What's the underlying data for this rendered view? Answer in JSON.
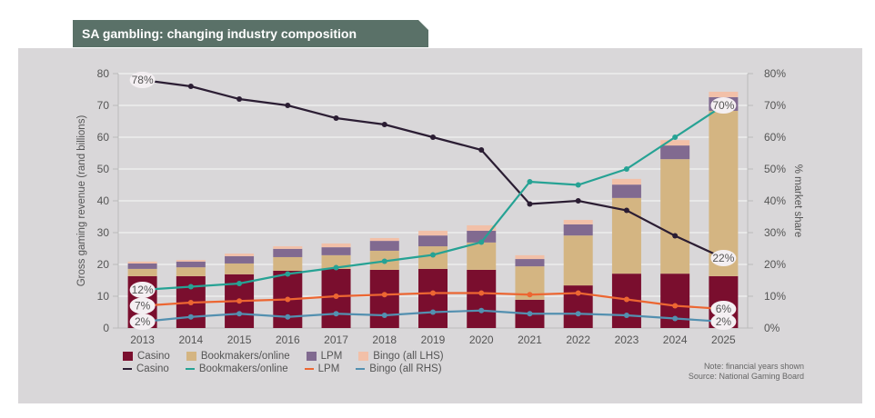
{
  "header": {
    "title": "SA gambling: changing industry composition"
  },
  "chart_data": {
    "type": "bar",
    "subtype": "stacked-bar-with-lines",
    "title": "SA gambling: changing industry composition",
    "xlabel": "",
    "ylabel": "Gross gaming revenue (rand billions)",
    "y2label": "% market share",
    "ylim": [
      0,
      80
    ],
    "y2lim": [
      0,
      80
    ],
    "yticks": [
      "0",
      "10",
      "20",
      "30",
      "40",
      "50",
      "60",
      "70",
      "80"
    ],
    "y2ticks": [
      "0%",
      "10%",
      "20%",
      "30%",
      "40%",
      "50%",
      "60%",
      "70%",
      "80%"
    ],
    "grid": true,
    "categories": [
      "2013",
      "2014",
      "2015",
      "2016",
      "2017",
      "2018",
      "2019",
      "2020",
      "2021",
      "2022",
      "2023",
      "2024",
      "2025"
    ],
    "bar_series": [
      {
        "name": "Casino",
        "color": "#7a0e2e",
        "values": [
          16.3,
          16.3,
          16.9,
          18.0,
          18.6,
          18.3,
          18.6,
          18.3,
          8.9,
          13.4,
          17.1,
          17.1,
          16.3
        ]
      },
      {
        "name": "Bookmakers/online",
        "color": "#d4b582",
        "values": [
          2.3,
          2.8,
          3.4,
          4.3,
          4.3,
          6.0,
          7.1,
          8.6,
          10.5,
          15.7,
          23.8,
          36.0,
          52.0
        ]
      },
      {
        "name": "LPM",
        "color": "#816a90",
        "values": [
          1.7,
          1.8,
          2.3,
          2.6,
          2.5,
          3.1,
          3.4,
          3.7,
          2.3,
          3.5,
          4.2,
          4.3,
          4.3
        ]
      },
      {
        "name": "Bingo (all LHS)",
        "color": "#f2c0a8",
        "values": [
          0.6,
          0.5,
          0.8,
          0.8,
          1.2,
          0.9,
          1.5,
          1.7,
          1.2,
          1.4,
          1.8,
          1.7,
          1.7
        ]
      }
    ],
    "line_series": [
      {
        "name": "Casino",
        "color": "#2b1d33",
        "axis": "right",
        "values": [
          78,
          76,
          72,
          70,
          66,
          64,
          60,
          56,
          39,
          40,
          37,
          29,
          22
        ]
      },
      {
        "name": "Bookmakers/online",
        "color": "#26a294",
        "axis": "right",
        "values": [
          12,
          13,
          14,
          17,
          19,
          21,
          23,
          27,
          46,
          45,
          50,
          60,
          70
        ]
      },
      {
        "name": "LPM",
        "color": "#ec6632",
        "axis": "right",
        "values": [
          7,
          8,
          8.5,
          9,
          10,
          10.5,
          11,
          11,
          10.5,
          11,
          9,
          7,
          6
        ]
      },
      {
        "name": "Bingo (all RHS)",
        "color": "#5390b0",
        "axis": "right",
        "values": [
          2,
          3.5,
          4.5,
          3.5,
          4.5,
          4,
          5,
          5.5,
          4.5,
          4.5,
          4,
          3,
          2
        ]
      }
    ],
    "annotations": {
      "start": [
        {
          "series": "Casino",
          "text": "78%"
        },
        {
          "series": "Bookmakers/online",
          "text": "12%"
        },
        {
          "series": "LPM",
          "text": "7%"
        },
        {
          "series": "Bingo (all RHS)",
          "text": "2%"
        }
      ],
      "end": [
        {
          "series": "Casino",
          "text": "22%"
        },
        {
          "series": "Bookmakers/online",
          "text": "70%"
        },
        {
          "series": "LPM",
          "text": "6%"
        },
        {
          "series": "Bingo (all RHS)",
          "text": "2%"
        }
      ]
    },
    "legend": {
      "placement": "bottom-left",
      "bars": [
        "Casino",
        "Bookmakers/online",
        "LPM",
        "Bingo (all LHS)"
      ],
      "lines": [
        "Casino",
        "Bookmakers/online",
        "LPM",
        "Bingo (all RHS)"
      ]
    }
  },
  "footer": {
    "note": "Note: financial years shown",
    "source": "Source: National Gaming Board"
  }
}
